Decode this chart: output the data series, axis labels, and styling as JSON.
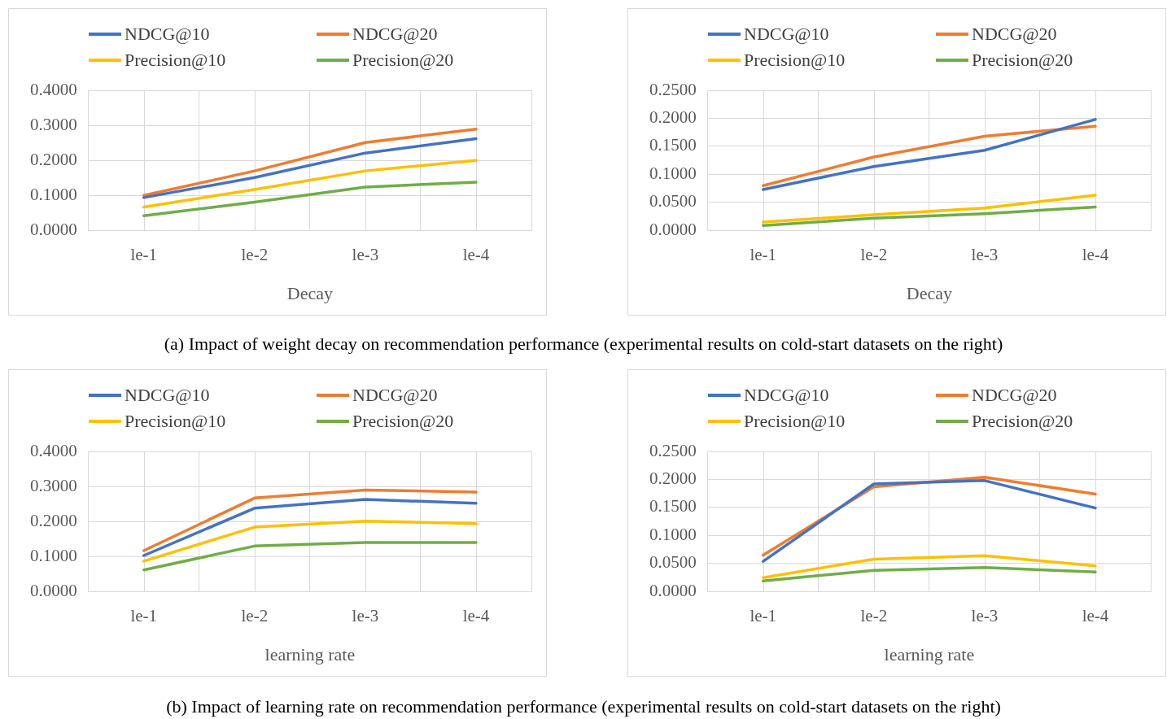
{
  "chart_data": [
    {
      "type": "line",
      "xlabel": "Decay",
      "categories": [
        "le-1",
        "le-2",
        "le-3",
        "le-4"
      ],
      "ylim": [
        0,
        0.4
      ],
      "yticks": [
        {
          "value": 0,
          "label": "0.0000"
        },
        {
          "value": 0.1,
          "label": "0.1000"
        },
        {
          "value": 0.2,
          "label": "0.2000"
        },
        {
          "value": 0.3,
          "label": "0.3000"
        },
        {
          "value": 0.4,
          "label": "0.4000"
        }
      ],
      "grid": true,
      "legend": "top",
      "marker": "none",
      "series": [
        {
          "name": "NDCG@10",
          "color": "#4472c4",
          "values": [
            0.094,
            0.151,
            0.221,
            0.262
          ]
        },
        {
          "name": "NDCG@20",
          "color": "#ed7d31",
          "values": [
            0.1,
            0.17,
            0.251,
            0.289
          ]
        },
        {
          "name": "Precision@10",
          "color": "#ffc000",
          "values": [
            0.067,
            0.117,
            0.17,
            0.2
          ]
        },
        {
          "name": "Precision@20",
          "color": "#70ad47",
          "values": [
            0.042,
            0.081,
            0.124,
            0.138
          ]
        }
      ]
    },
    {
      "type": "line",
      "xlabel": "Decay",
      "categories": [
        "le-1",
        "le-2",
        "le-3",
        "le-4"
      ],
      "ylim": [
        0,
        0.25
      ],
      "yticks": [
        {
          "value": 0,
          "label": "0.0000"
        },
        {
          "value": 0.05,
          "label": "0.0500"
        },
        {
          "value": 0.1,
          "label": "0.1000"
        },
        {
          "value": 0.15,
          "label": "0.1500"
        },
        {
          "value": 0.2,
          "label": "0.2000"
        },
        {
          "value": 0.25,
          "label": "0.2500"
        }
      ],
      "grid": true,
      "legend": "top",
      "marker": "none",
      "annotations": [
        "(a) Impact of weight decay on recommendation performance (experimental results on cold-start datasets on the right)"
      ],
      "series": [
        {
          "name": "NDCG@10",
          "color": "#4472c4",
          "values": [
            0.073,
            0.114,
            0.143,
            0.198
          ]
        },
        {
          "name": "NDCG@20",
          "color": "#ed7d31",
          "values": [
            0.08,
            0.131,
            0.168,
            0.186
          ]
        },
        {
          "name": "Precision@10",
          "color": "#ffc000",
          "values": [
            0.015,
            0.028,
            0.04,
            0.063
          ]
        },
        {
          "name": "Precision@20",
          "color": "#70ad47",
          "values": [
            0.009,
            0.022,
            0.03,
            0.042
          ]
        }
      ]
    },
    {
      "type": "line",
      "xlabel": "learning rate",
      "categories": [
        "le-1",
        "le-2",
        "le-3",
        "le-4"
      ],
      "ylim": [
        0,
        0.4
      ],
      "yticks": [
        {
          "value": 0,
          "label": "0.0000"
        },
        {
          "value": 0.1,
          "label": "0.1000"
        },
        {
          "value": 0.2,
          "label": "0.2000"
        },
        {
          "value": 0.3,
          "label": "0.3000"
        },
        {
          "value": 0.4,
          "label": "0.4000"
        }
      ],
      "grid": true,
      "legend": "top",
      "marker": "none",
      "series": [
        {
          "name": "NDCG@10",
          "color": "#4472c4",
          "values": [
            0.103,
            0.238,
            0.263,
            0.252
          ]
        },
        {
          "name": "NDCG@20",
          "color": "#ed7d31",
          "values": [
            0.117,
            0.267,
            0.29,
            0.284
          ]
        },
        {
          "name": "Precision@10",
          "color": "#ffc000",
          "values": [
            0.087,
            0.184,
            0.201,
            0.194
          ]
        },
        {
          "name": "Precision@20",
          "color": "#70ad47",
          "values": [
            0.062,
            0.13,
            0.14,
            0.14
          ]
        }
      ]
    },
    {
      "type": "line",
      "xlabel": "learning rate",
      "categories": [
        "le-1",
        "le-2",
        "le-3",
        "le-4"
      ],
      "ylim": [
        0,
        0.25
      ],
      "yticks": [
        {
          "value": 0,
          "label": "0.0000"
        },
        {
          "value": 0.05,
          "label": "0.0500"
        },
        {
          "value": 0.1,
          "label": "0.1000"
        },
        {
          "value": 0.15,
          "label": "0.1500"
        },
        {
          "value": 0.2,
          "label": "0.2000"
        },
        {
          "value": 0.25,
          "label": "0.2500"
        }
      ],
      "grid": true,
      "legend": "top",
      "marker": "none",
      "annotations": [
        "(b) Impact of learning rate on recommendation performance (experimental results on cold-start datasets on the right)"
      ],
      "series": [
        {
          "name": "NDCG@10",
          "color": "#4472c4",
          "values": [
            0.054,
            0.192,
            0.198,
            0.149
          ]
        },
        {
          "name": "NDCG@20",
          "color": "#ed7d31",
          "values": [
            0.065,
            0.187,
            0.204,
            0.174
          ]
        },
        {
          "name": "Precision@10",
          "color": "#ffc000",
          "values": [
            0.025,
            0.058,
            0.064,
            0.046
          ]
        },
        {
          "name": "Precision@20",
          "color": "#70ad47",
          "values": [
            0.019,
            0.038,
            0.043,
            0.035
          ]
        }
      ]
    }
  ]
}
